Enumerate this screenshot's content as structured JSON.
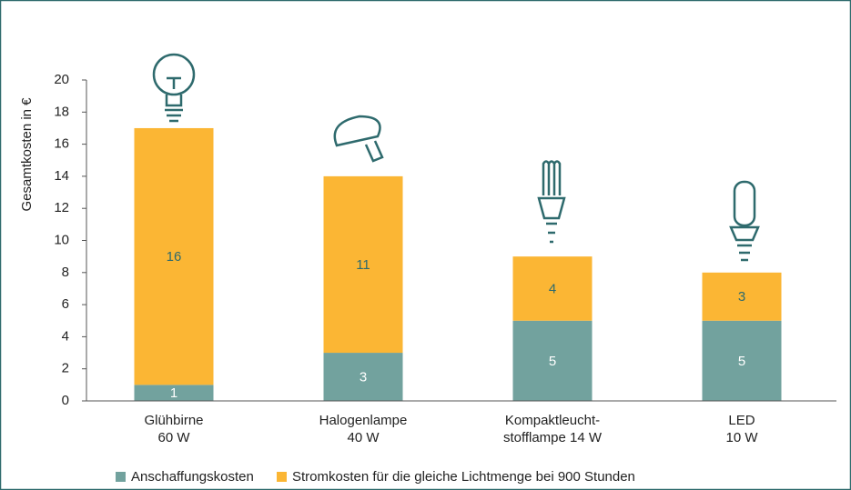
{
  "chart_data": {
    "type": "stacked_bar",
    "ylabel": "Gesamtkosten in €",
    "categories": [
      [
        "Glühbirne",
        "60 W"
      ],
      [
        "Halogenlampe",
        "40 W"
      ],
      [
        "Kompaktleucht-",
        "stofflampe 14 W"
      ],
      [
        "LED",
        "10 W"
      ]
    ],
    "series": [
      {
        "name": "Anschaffungskosten",
        "color": "#72a29e",
        "label_color": "#ffffff",
        "values": [
          1,
          3,
          5,
          5
        ]
      },
      {
        "name": "Stromkosten für die gleiche Lichtmenge bei 900 Stunden",
        "color": "#fbb634",
        "label_color": "#2e6a6d",
        "values": [
          16,
          11,
          4,
          3
        ]
      }
    ],
    "ylim": [
      0,
      20
    ],
    "yticks": [
      0,
      2,
      4,
      6,
      8,
      10,
      12,
      14,
      16,
      18,
      20
    ]
  }
}
